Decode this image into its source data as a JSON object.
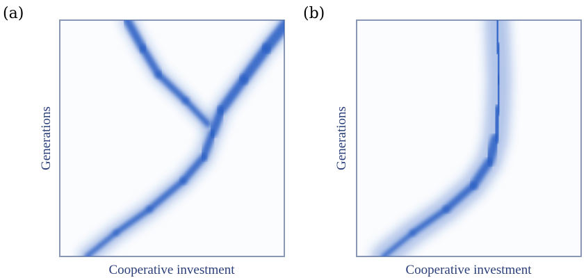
{
  "chart_data": [
    {
      "type": "density",
      "panel_label": "(a)",
      "xlabel": "Cooperative investment",
      "ylabel": "Generations",
      "color": "#2a5fc4",
      "branches": [
        {
          "points": [
            [
              0.12,
              0.0
            ],
            [
              0.25,
              0.1
            ],
            [
              0.4,
              0.2
            ],
            [
              0.55,
              0.32
            ],
            [
              0.64,
              0.42
            ],
            [
              0.68,
              0.52
            ],
            [
              0.72,
              0.62
            ],
            [
              0.82,
              0.75
            ],
            [
              0.92,
              0.88
            ],
            [
              1.02,
              1.0
            ]
          ],
          "core": [
            0.022,
            0.05
          ]
        },
        {
          "points": [
            [
              0.66,
              0.56
            ],
            [
              0.56,
              0.66
            ],
            [
              0.44,
              0.77
            ],
            [
              0.37,
              0.88
            ],
            [
              0.3,
              1.0
            ]
          ],
          "core": [
            0.025,
            0.04
          ]
        }
      ]
    },
    {
      "type": "density",
      "panel_label": "(b)",
      "xlabel": "Cooperative investment",
      "ylabel": "Generations",
      "color": "#2a5fc4",
      "branches": [
        {
          "points": [
            [
              0.12,
              0.0
            ],
            [
              0.25,
              0.1
            ],
            [
              0.4,
              0.2
            ],
            [
              0.52,
              0.3
            ],
            [
              0.59,
              0.4
            ],
            [
              0.62,
              0.5
            ],
            [
              0.63,
              0.62
            ],
            [
              0.635,
              0.75
            ],
            [
              0.63,
              0.88
            ],
            [
              0.625,
              1.0
            ]
          ],
          "core": [
            0.022,
            0.07
          ]
        }
      ]
    }
  ]
}
